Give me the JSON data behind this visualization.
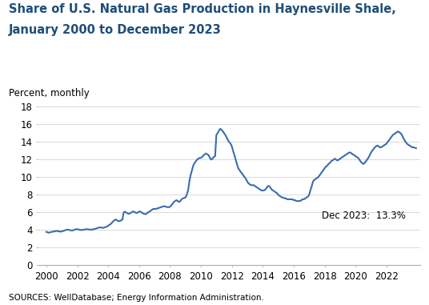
{
  "title_line1": "Share of U.S. Natural Gas Production in Haynesville Shale,",
  "title_line2": "January 2000 to December 2023",
  "ylabel": "Percent, monthly",
  "source": "SOURCES: WellDatabase; Energy Information Administration.",
  "annotation": "Dec 2023:  13.3%",
  "line_color": "#3A6DB0",
  "line_width": 1.5,
  "ylim": [
    0,
    18
  ],
  "yticks": [
    0,
    2,
    4,
    6,
    8,
    10,
    12,
    14,
    16,
    18
  ],
  "title_color": "#1F4E79",
  "title_fontsize": 10.5,
  "ylabel_fontsize": 8.5,
  "tick_fontsize": 8.5,
  "x_years": [
    2000,
    2002,
    2004,
    2006,
    2008,
    2010,
    2012,
    2014,
    2016,
    2018,
    2020,
    2022
  ],
  "data": {
    "dates_decimal": [
      2000.0,
      2000.08,
      2000.17,
      2000.25,
      2000.33,
      2000.42,
      2000.5,
      2000.58,
      2000.67,
      2000.75,
      2000.83,
      2000.92,
      2001.0,
      2001.08,
      2001.17,
      2001.25,
      2001.33,
      2001.42,
      2001.5,
      2001.58,
      2001.67,
      2001.75,
      2001.83,
      2001.92,
      2002.0,
      2002.08,
      2002.17,
      2002.25,
      2002.33,
      2002.42,
      2002.5,
      2002.58,
      2002.67,
      2002.75,
      2002.83,
      2002.92,
      2003.0,
      2003.08,
      2003.17,
      2003.25,
      2003.33,
      2003.42,
      2003.5,
      2003.58,
      2003.67,
      2003.75,
      2003.83,
      2003.92,
      2004.0,
      2004.08,
      2004.17,
      2004.25,
      2004.33,
      2004.42,
      2004.5,
      2004.58,
      2004.67,
      2004.75,
      2004.83,
      2004.92,
      2005.0,
      2005.08,
      2005.17,
      2005.25,
      2005.33,
      2005.42,
      2005.5,
      2005.58,
      2005.67,
      2005.75,
      2005.83,
      2005.92,
      2006.0,
      2006.08,
      2006.17,
      2006.25,
      2006.33,
      2006.42,
      2006.5,
      2006.58,
      2006.67,
      2006.75,
      2006.83,
      2006.92,
      2007.0,
      2007.08,
      2007.17,
      2007.25,
      2007.33,
      2007.42,
      2007.5,
      2007.58,
      2007.67,
      2007.75,
      2007.83,
      2007.92,
      2008.0,
      2008.08,
      2008.17,
      2008.25,
      2008.33,
      2008.42,
      2008.5,
      2008.58,
      2008.67,
      2008.75,
      2008.83,
      2008.92,
      2009.0,
      2009.08,
      2009.17,
      2009.25,
      2009.33,
      2009.42,
      2009.5,
      2009.58,
      2009.67,
      2009.75,
      2009.83,
      2009.92,
      2010.0,
      2010.08,
      2010.17,
      2010.25,
      2010.33,
      2010.42,
      2010.5,
      2010.58,
      2010.67,
      2010.75,
      2010.83,
      2010.92,
      2011.0,
      2011.08,
      2011.17,
      2011.25,
      2011.33,
      2011.42,
      2011.5,
      2011.58,
      2011.67,
      2011.75,
      2011.83,
      2011.92,
      2012.0,
      2012.08,
      2012.17,
      2012.25,
      2012.33,
      2012.42,
      2012.5,
      2012.58,
      2012.67,
      2012.75,
      2012.83,
      2012.92,
      2013.0,
      2013.08,
      2013.17,
      2013.25,
      2013.33,
      2013.42,
      2013.5,
      2013.58,
      2013.67,
      2013.75,
      2013.83,
      2013.92,
      2014.0,
      2014.08,
      2014.17,
      2014.25,
      2014.33,
      2014.42,
      2014.5,
      2014.58,
      2014.67,
      2014.75,
      2014.83,
      2014.92,
      2015.0,
      2015.08,
      2015.17,
      2015.25,
      2015.33,
      2015.42,
      2015.5,
      2015.58,
      2015.67,
      2015.75,
      2015.83,
      2015.92,
      2016.0,
      2016.08,
      2016.17,
      2016.25,
      2016.33,
      2016.42,
      2016.5,
      2016.58,
      2016.67,
      2016.75,
      2016.83,
      2016.92,
      2017.0,
      2017.08,
      2017.17,
      2017.25,
      2017.33,
      2017.42,
      2017.5,
      2017.58,
      2017.67,
      2017.75,
      2017.83,
      2017.92,
      2018.0,
      2018.08,
      2018.17,
      2018.25,
      2018.33,
      2018.42,
      2018.5,
      2018.58,
      2018.67,
      2018.75,
      2018.83,
      2018.92,
      2019.0,
      2019.08,
      2019.17,
      2019.25,
      2019.33,
      2019.42,
      2019.5,
      2019.58,
      2019.67,
      2019.75,
      2019.83,
      2019.92,
      2020.0,
      2020.08,
      2020.17,
      2020.25,
      2020.33,
      2020.42,
      2020.5,
      2020.58,
      2020.67,
      2020.75,
      2020.83,
      2020.92,
      2021.0,
      2021.08,
      2021.17,
      2021.25,
      2021.33,
      2021.42,
      2021.5,
      2021.58,
      2021.67,
      2021.75,
      2021.83,
      2021.92,
      2022.0,
      2022.08,
      2022.17,
      2022.25,
      2022.33,
      2022.42,
      2022.5,
      2022.58,
      2022.67,
      2022.75,
      2022.83,
      2022.92,
      2023.0,
      2023.08,
      2023.17,
      2023.25,
      2023.33,
      2023.42,
      2023.5,
      2023.58,
      2023.67,
      2023.75,
      2023.83,
      2023.92
    ],
    "values": [
      3.8,
      3.75,
      3.7,
      3.75,
      3.8,
      3.82,
      3.85,
      3.88,
      3.9,
      3.88,
      3.85,
      3.82,
      3.85,
      3.9,
      3.95,
      4.0,
      4.05,
      4.05,
      4.0,
      3.98,
      3.95,
      4.0,
      4.05,
      4.1,
      4.1,
      4.08,
      4.05,
      4.0,
      4.02,
      4.05,
      4.08,
      4.1,
      4.1,
      4.08,
      4.05,
      4.05,
      4.08,
      4.1,
      4.15,
      4.2,
      4.25,
      4.3,
      4.3,
      4.28,
      4.25,
      4.3,
      4.35,
      4.4,
      4.5,
      4.6,
      4.7,
      4.85,
      5.0,
      5.15,
      5.2,
      5.1,
      5.0,
      5.05,
      5.1,
      5.2,
      6.0,
      6.1,
      6.0,
      5.9,
      5.85,
      5.9,
      6.0,
      6.1,
      6.1,
      6.0,
      5.95,
      6.0,
      6.1,
      6.1,
      6.0,
      5.9,
      5.85,
      5.8,
      5.9,
      6.0,
      6.1,
      6.2,
      6.3,
      6.4,
      6.4,
      6.4,
      6.45,
      6.5,
      6.55,
      6.6,
      6.65,
      6.7,
      6.7,
      6.65,
      6.6,
      6.6,
      6.65,
      6.8,
      7.0,
      7.2,
      7.3,
      7.4,
      7.3,
      7.2,
      7.3,
      7.5,
      7.6,
      7.65,
      7.7,
      8.0,
      8.5,
      9.5,
      10.2,
      10.8,
      11.3,
      11.6,
      11.8,
      12.0,
      12.1,
      12.2,
      12.2,
      12.3,
      12.5,
      12.6,
      12.7,
      12.6,
      12.5,
      12.2,
      12.0,
      12.1,
      12.3,
      12.4,
      14.8,
      15.0,
      15.3,
      15.5,
      15.4,
      15.2,
      15.0,
      14.8,
      14.5,
      14.2,
      14.0,
      13.8,
      13.5,
      13.0,
      12.5,
      12.0,
      11.5,
      11.0,
      10.8,
      10.6,
      10.4,
      10.2,
      10.0,
      9.8,
      9.5,
      9.3,
      9.2,
      9.1,
      9.1,
      9.1,
      9.0,
      8.9,
      8.8,
      8.7,
      8.6,
      8.5,
      8.5,
      8.5,
      8.6,
      8.8,
      9.0,
      9.0,
      8.8,
      8.6,
      8.5,
      8.4,
      8.3,
      8.2,
      8.0,
      7.9,
      7.8,
      7.7,
      7.7,
      7.6,
      7.6,
      7.5,
      7.5,
      7.5,
      7.5,
      7.5,
      7.4,
      7.4,
      7.3,
      7.3,
      7.3,
      7.3,
      7.4,
      7.5,
      7.5,
      7.6,
      7.7,
      7.8,
      8.0,
      8.5,
      9.0,
      9.5,
      9.7,
      9.8,
      9.9,
      10.0,
      10.2,
      10.4,
      10.6,
      10.8,
      11.0,
      11.2,
      11.3,
      11.5,
      11.6,
      11.8,
      11.9,
      12.0,
      12.1,
      12.0,
      11.9,
      12.0,
      12.1,
      12.2,
      12.3,
      12.4,
      12.5,
      12.6,
      12.7,
      12.8,
      12.8,
      12.7,
      12.6,
      12.5,
      12.4,
      12.3,
      12.2,
      12.0,
      11.8,
      11.6,
      11.5,
      11.6,
      11.8,
      12.0,
      12.2,
      12.5,
      12.8,
      13.0,
      13.2,
      13.4,
      13.5,
      13.6,
      13.5,
      13.4,
      13.4,
      13.5,
      13.6,
      13.7,
      13.8,
      14.0,
      14.2,
      14.4,
      14.6,
      14.8,
      14.9,
      15.0,
      15.1,
      15.2,
      15.1,
      15.0,
      14.8,
      14.5,
      14.2,
      14.0,
      13.8,
      13.7,
      13.6,
      13.5,
      13.4,
      13.4,
      13.35,
      13.3
    ]
  }
}
